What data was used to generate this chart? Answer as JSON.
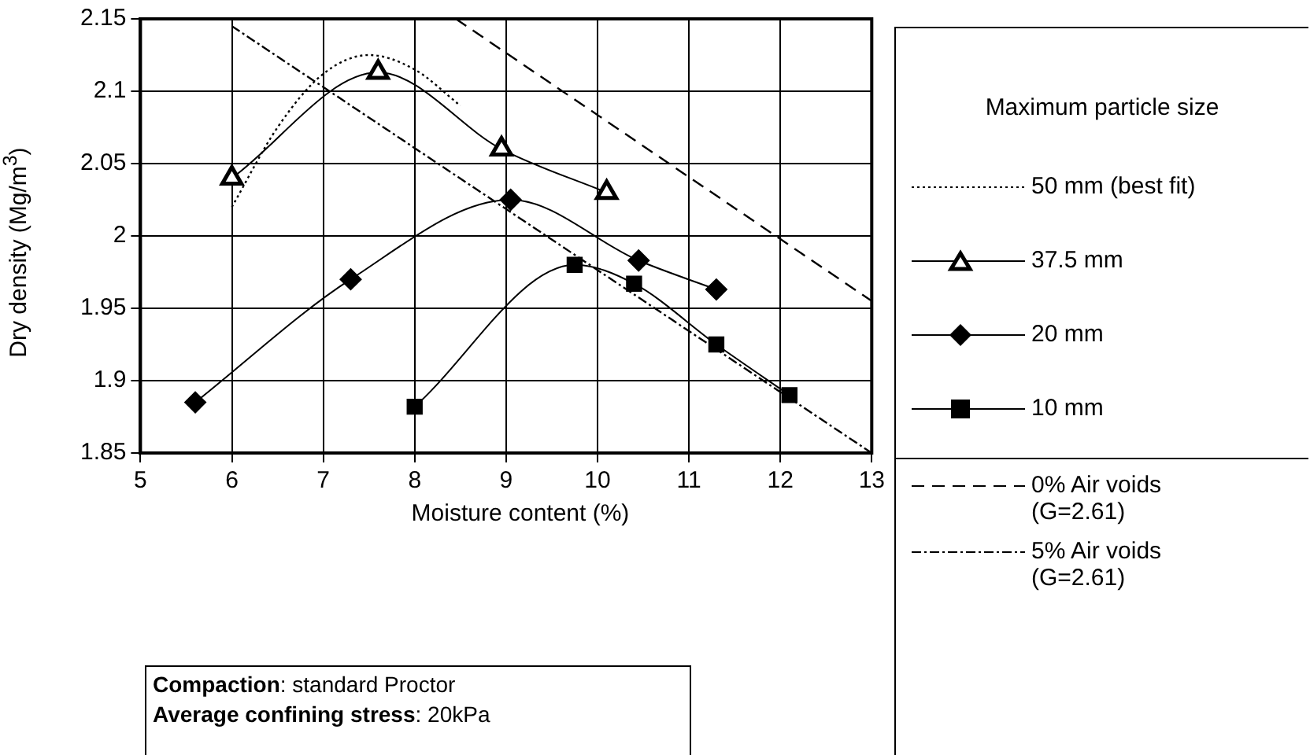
{
  "chart_data": {
    "type": "line",
    "xlabel": "Moisture content (%)",
    "ylabel": "Dry density (Mg/m$^{3}$)",
    "legend_title": "Maximum particle size",
    "xlim": [
      5,
      13
    ],
    "xticks": [
      5,
      6,
      7,
      8,
      9,
      10,
      11,
      12,
      13
    ],
    "ylim": [
      1.85,
      2.15
    ],
    "yticks": [
      1.85,
      1.9,
      1.95,
      2,
      2.05,
      2.1,
      2.15
    ],
    "grid": true,
    "legend": "right",
    "series": [
      {
        "name": "50 mm (best fit)",
        "color": "#000000",
        "marker": "none",
        "line_style": "dotted",
        "x": [
          6,
          6.5,
          7,
          7.5,
          8,
          8.5
        ],
        "values": [
          2.02,
          2.075,
          2.112,
          2.125,
          2.115,
          2.09
        ]
      },
      {
        "name": "37.5 mm",
        "color": "#000000",
        "marker": "triangle",
        "line_style": "solid",
        "x": [
          6,
          7.6,
          8.95,
          10.1
        ],
        "values": [
          2.04,
          2.113,
          2.06,
          2.03
        ]
      },
      {
        "name": "20 mm",
        "color": "#000000",
        "marker": "diamond",
        "line_style": "solid",
        "x": [
          5.6,
          7.3,
          9.05,
          10.45,
          11.3
        ],
        "values": [
          1.885,
          1.97,
          2.025,
          1.983,
          1.963
        ]
      },
      {
        "name": "10 mm",
        "color": "#000000",
        "marker": "square",
        "line_style": "solid",
        "x": [
          8,
          9.75,
          10.4,
          11.3,
          12.1
        ],
        "values": [
          1.882,
          1.98,
          1.967,
          1.925,
          1.89
        ]
      },
      {
        "name": "0% Air voids (G=2.61)",
        "color": "#000000",
        "marker": "none",
        "line_style": "dashed",
        "x": [
          8.45,
          13
        ],
        "values": [
          2.15,
          1.955
        ]
      },
      {
        "name": "5% Air voids (G=2.61)",
        "color": "#000000",
        "marker": "none",
        "line_style": "dashdot",
        "x": [
          6,
          13
        ],
        "values": [
          2.145,
          1.85
        ]
      }
    ],
    "annotations": [
      "Compaction: standard Proctor",
      "Average confining stress: 20kPa"
    ]
  }
}
